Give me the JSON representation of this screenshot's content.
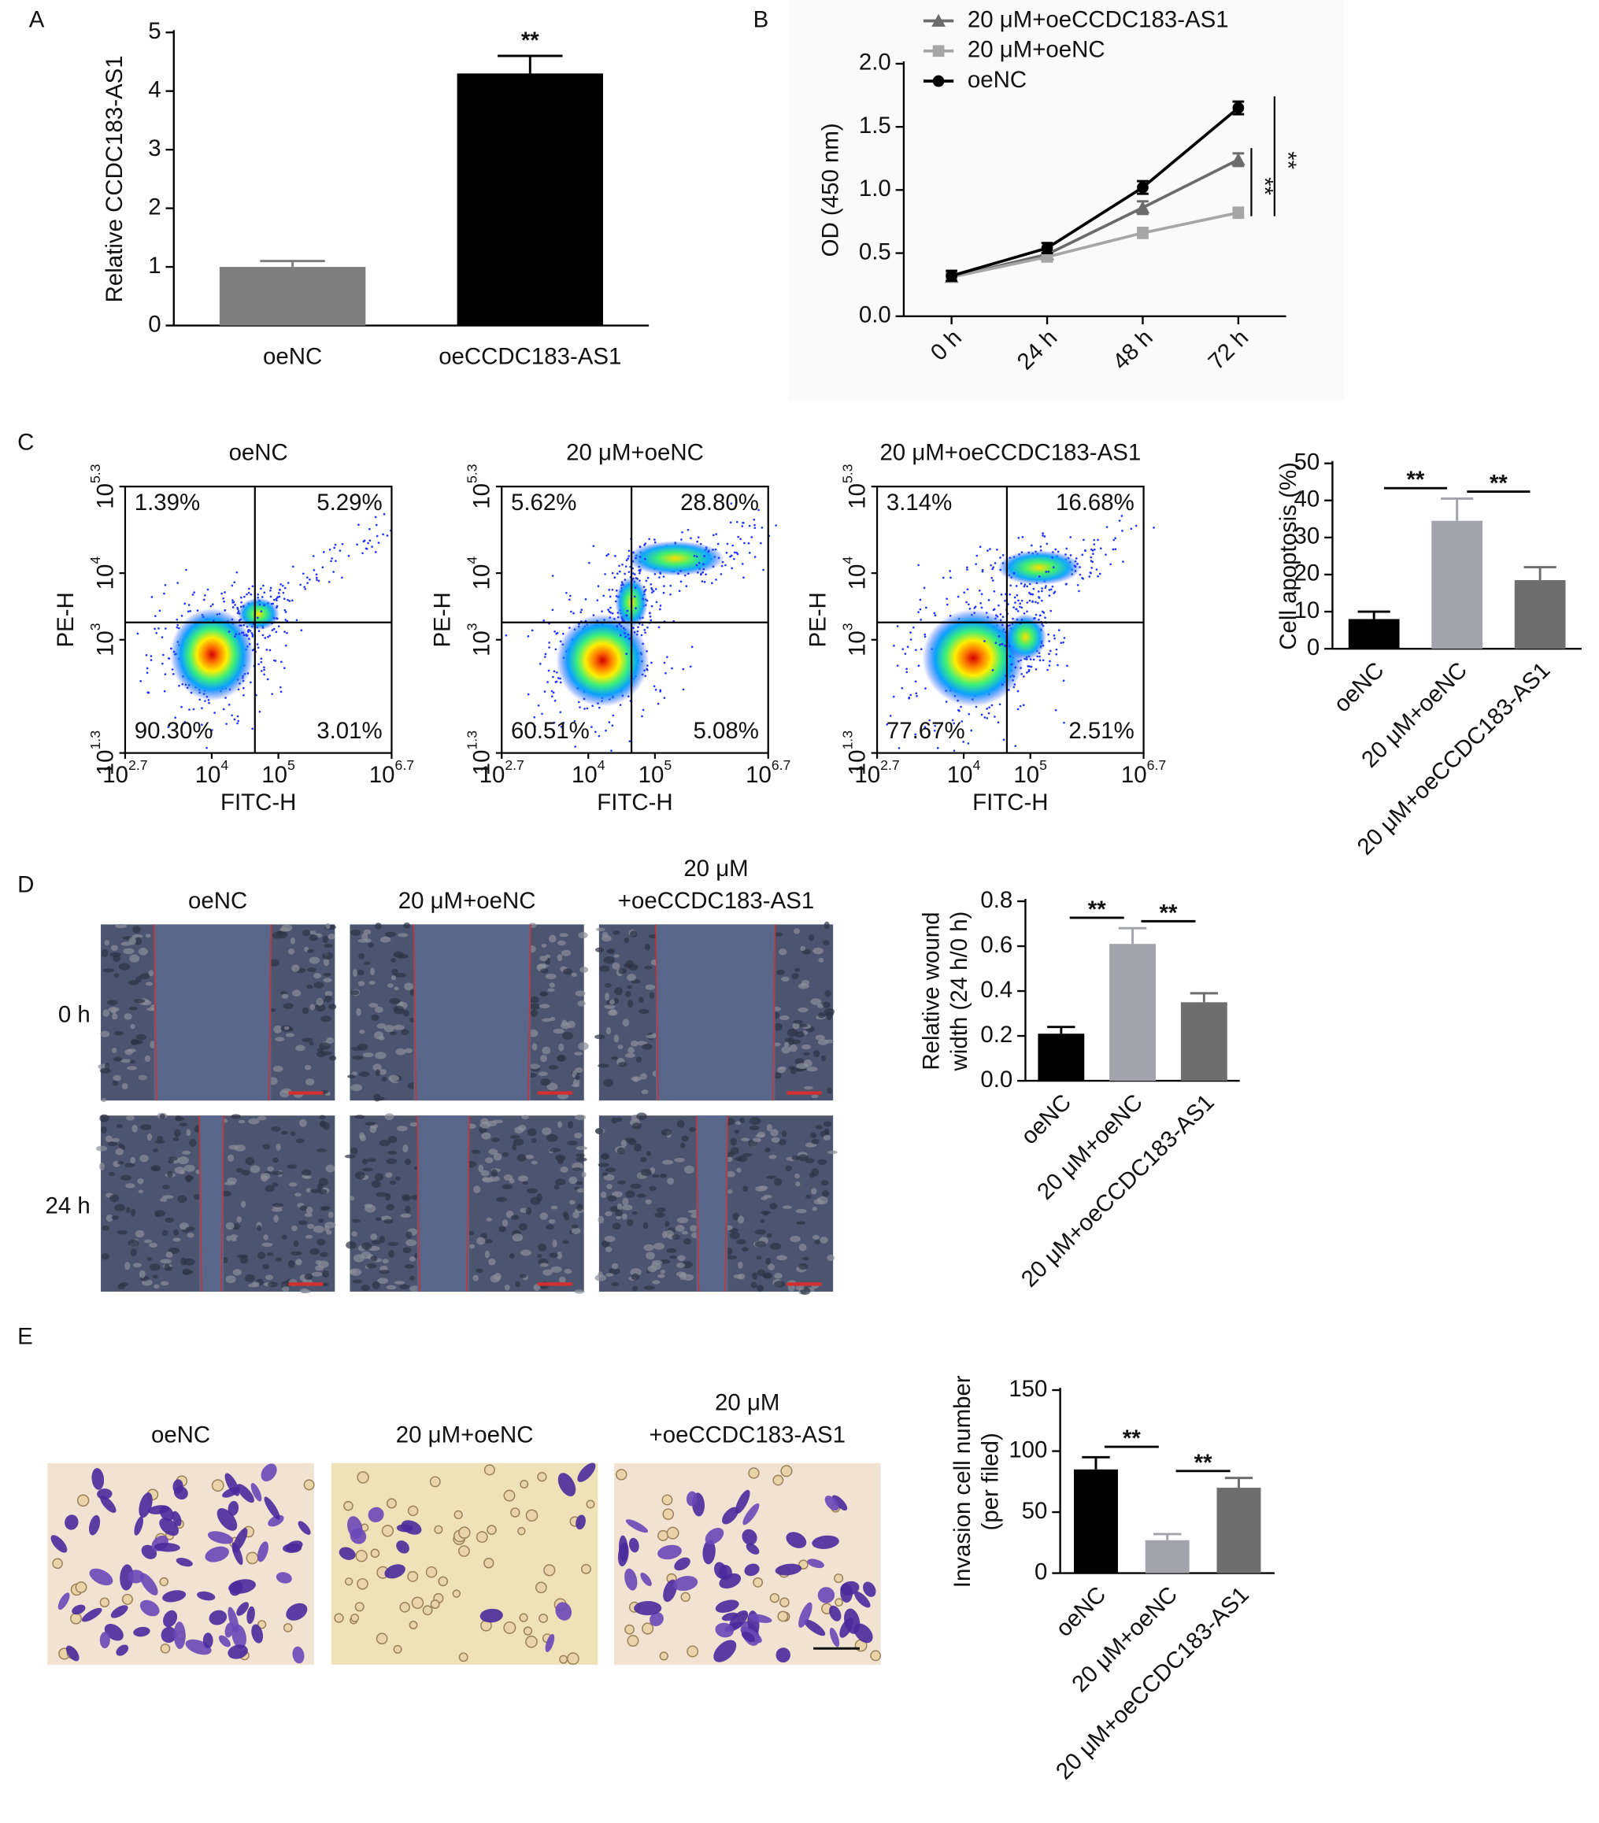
{
  "panel_labels": [
    "A",
    "B",
    "C",
    "D",
    "E"
  ],
  "chart_data": [
    {
      "type": "bar",
      "categories": [
        "oeNC",
        "oeCCDC183-AS1"
      ],
      "values": [
        1,
        4.3
      ],
      "errors": [
        0.1,
        0.3
      ],
      "colors": [
        "#7f7f7f",
        "#000000"
      ],
      "ylabel": "Relative CCDC183-AS1",
      "ylim": [
        0,
        5
      ],
      "yticks": [
        0,
        1,
        2,
        3,
        4,
        5
      ],
      "significance": [
        {
          "label": "**",
          "groups": [
            "oeCCDC183-AS1"
          ]
        }
      ]
    },
    {
      "type": "line",
      "categories": [
        "0 h",
        "24 h",
        "48 h",
        "72 h"
      ],
      "ylabel": "OD (450 nm)",
      "ylim": [
        0,
        2
      ],
      "yticks": [
        {
          "value": 0,
          "label": "0.0"
        },
        0.5,
        {
          "value": 1,
          "label": "1.0"
        },
        1.5,
        {
          "value": 2,
          "label": "2.0"
        }
      ],
      "series": [
        {
          "name": "20 μM+oeCCDC183-AS1",
          "color": "#6b6b6b",
          "marker": "triangle",
          "values": [
            0.31,
            0.49,
            0.86,
            1.24
          ],
          "errors": [
            0.03,
            0.03,
            0.05,
            0.05
          ]
        },
        {
          "name": "20 μM+oeNC",
          "color": "#a6a6a6",
          "marker": "square",
          "values": [
            0.31,
            0.47,
            0.66,
            0.82
          ],
          "errors": [
            0.03,
            0.03,
            0.04,
            0.04
          ]
        },
        {
          "name": "oeNC",
          "color": "#000000",
          "marker": "circle",
          "values": [
            0.32,
            0.54,
            1.02,
            1.65
          ],
          "errors": [
            0.04,
            0.04,
            0.05,
            0.05
          ]
        }
      ],
      "significance": [
        {
          "label": "**",
          "series": [
            "20 μM+oeCCDC183-AS1",
            "20 μM+oeNC"
          ]
        },
        {
          "label": "**",
          "series": [
            "oeNC",
            "20 μM+oeNC"
          ]
        }
      ]
    },
    {
      "type": "bar",
      "categories": [
        "oeNC",
        "20 μM+oeNC",
        "20 μM+oeCCDC183-AS1"
      ],
      "values": [
        8,
        34.5,
        18.5
      ],
      "errors": [
        2,
        6,
        3.5
      ],
      "colors": [
        "#000000",
        "#a3a3ab",
        "#6e6e6e"
      ],
      "ylabel": "Cell apoptosis (%)",
      "ylim": [
        0,
        50
      ],
      "yticks": [
        0,
        10,
        20,
        30,
        40,
        50
      ],
      "significance": [
        {
          "label": "**",
          "groups": [
            "oeNC",
            "20 μM+oeNC"
          ]
        },
        {
          "label": "**",
          "groups": [
            "20 μM+oeNC",
            "20 μM+oeCCDC183-AS1"
          ]
        }
      ]
    },
    {
      "type": "bar",
      "categories": [
        "oeNC",
        "20 μM+oeNC",
        "20 μM+oeCCDC183-AS1"
      ],
      "values": [
        0.21,
        0.61,
        0.35
      ],
      "errors": [
        0.03,
        0.07,
        0.04
      ],
      "colors": [
        "#000000",
        "#a3a3ab",
        "#6e6e6e"
      ],
      "ylabel": [
        "Relative wound",
        "width (24 h/0 h)"
      ],
      "ylim": [
        0,
        0.8
      ],
      "yticks": [
        {
          "value": 0,
          "label": "0.0"
        },
        0.2,
        0.4,
        0.6,
        0.8
      ],
      "significance": [
        {
          "label": "**",
          "groups": [
            "oeNC",
            "20 μM+oeNC"
          ]
        },
        {
          "label": "**",
          "groups": [
            "20 μM+oeNC",
            "20 μM+oeCCDC183-AS1"
          ]
        }
      ]
    },
    {
      "type": "bar",
      "categories": [
        "oeNC",
        "20 μM+oeNC",
        "20 μM+oeCCDC183-AS1"
      ],
      "values": [
        85,
        27,
        70
      ],
      "errors": [
        10,
        5,
        8
      ],
      "colors": [
        "#000000",
        "#a3a3ab",
        "#6e6e6e"
      ],
      "ylabel": [
        "Invasion cell number",
        "(per filed)"
      ],
      "ylim": [
        0,
        150
      ],
      "yticks": [
        0,
        50,
        100,
        150
      ],
      "significance": [
        {
          "label": "**",
          "groups": [
            "oeNC",
            "20 μM+oeNC"
          ]
        },
        {
          "label": "**",
          "groups": [
            "20 μM+oeNC",
            "20 μM+oeCCDC183-AS1"
          ]
        }
      ]
    }
  ],
  "flow_cytometry": {
    "x_label": "FITC-H",
    "y_label": "PE-H",
    "x_ticks": [
      {
        "base": "10",
        "exp": "2.7"
      },
      {
        "base": "10",
        "exp": "4"
      },
      {
        "base": "10",
        "exp": "5"
      },
      {
        "base": "10",
        "exp": "6.7"
      }
    ],
    "y_ticks": [
      {
        "base": "10",
        "exp": "1.3"
      },
      {
        "base": "10",
        "exp": "3"
      },
      {
        "base": "10",
        "exp": "4"
      },
      {
        "base": "10",
        "exp": "5.3"
      }
    ],
    "plots": [
      {
        "title": "oeNC",
        "upper_left": "1.39%",
        "upper_right": "5.29%",
        "lower_left": "90.30%",
        "lower_right": "3.01%"
      },
      {
        "title": "20 μM+oeNC",
        "upper_left": "5.62%",
        "upper_right": "28.80%",
        "lower_left": "60.51%",
        "lower_right": "5.08%"
      },
      {
        "title": "20 μM+oeCCDC183-AS1",
        "upper_left": "3.14%",
        "upper_right": "16.68%",
        "lower_left": "77.67%",
        "lower_right": "2.51%"
      }
    ]
  },
  "wound_healing": {
    "columns": [
      [
        "oeNC"
      ],
      [
        "20 μM+oeNC"
      ],
      [
        "20 μM",
        "+oeCCDC183-AS1"
      ]
    ],
    "rows": [
      "0 h",
      "24 h"
    ]
  },
  "transwell": {
    "columns": [
      [
        "oeNC"
      ],
      [
        "20 μM+oeNC"
      ],
      [
        "20 μM",
        "+oeCCDC183-AS1"
      ]
    ]
  }
}
